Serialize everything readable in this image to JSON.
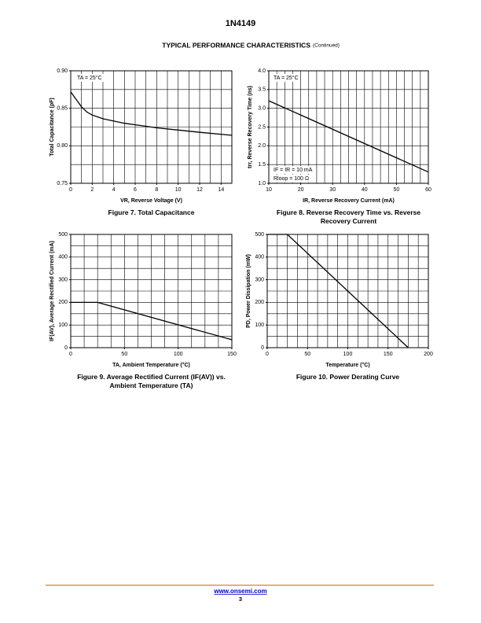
{
  "header": {
    "title": "1N4149",
    "section": "TYPICAL PERFORMANCE CHARACTERISTICS",
    "section_note": "(Continued)"
  },
  "chart_data": [
    {
      "type": "line",
      "title": "Figure 7. Total Capacitance",
      "x_label": "VR, Reverse Voltage (V)",
      "y_label": "Total Capacitance (pF)",
      "annotations": [
        "TA = 25°C"
      ],
      "color": "#000000",
      "x": [
        0,
        0.5,
        1,
        1.5,
        2,
        3,
        4,
        5,
        6,
        7,
        8,
        10,
        12,
        15
      ],
      "values": [
        0.872,
        0.862,
        0.852,
        0.845,
        0.841,
        0.836,
        0.833,
        0.83,
        0.828,
        0.826,
        0.824,
        0.821,
        0.818,
        0.814
      ],
      "xlim": [
        0,
        15
      ],
      "xticks": [
        0,
        2,
        4,
        6,
        8,
        10,
        12,
        14
      ],
      "ylim": [
        0.75,
        0.9
      ],
      "yticks": [
        0.75,
        {
          "value": 0.8,
          "label": "0.80"
        },
        0.85,
        {
          "value": 0.9,
          "label": "0.90"
        }
      ],
      "xgrid": [
        0,
        1,
        2,
        3,
        4,
        5,
        6,
        7,
        8,
        9,
        10,
        11,
        12,
        13,
        14,
        15
      ],
      "ygrid": [
        0.75,
        0.775,
        0.8,
        0.825,
        0.85,
        0.875,
        0.9
      ]
    },
    {
      "type": "line",
      "title": "Figure 8. Reverse Recovery Time vs. Reverse Recovery Current",
      "x_label": "IR, Reverse Recovery Current (mA)",
      "y_label": "trr, Reverse Recovery Time (ns)",
      "annotations": [
        "TA = 25°C",
        "IF = IR = 10 mA",
        "Rloop = 100 Ω"
      ],
      "color": "#000000",
      "x": [
        10,
        60
      ],
      "values": [
        3.2,
        1.3
      ],
      "xlim": [
        10,
        60
      ],
      "xticks": [
        10,
        20,
        30,
        40,
        50,
        60
      ],
      "ylim": [
        1,
        4
      ],
      "yticks": [
        {
          "value": 1,
          "label": "1.0"
        },
        1.5,
        {
          "value": 2,
          "label": "2.0"
        },
        2.5,
        {
          "value": 3,
          "label": "3.0"
        },
        3.5,
        {
          "value": 4,
          "label": "4.0"
        }
      ],
      "xgrid": [
        10,
        12.5,
        15,
        17.5,
        20,
        22.5,
        25,
        27.5,
        30,
        32.5,
        35,
        37.5,
        40,
        42.5,
        45,
        47.5,
        50,
        52.5,
        55,
        57.5,
        60
      ],
      "ygrid": [
        1,
        1.5,
        2,
        2.5,
        3,
        3.5,
        4
      ]
    },
    {
      "type": "line",
      "title": "Figure 9. Average Rectified Current (IF(AV)) vs. Ambient Temperature (TA)",
      "x_label": "TA, Ambient Temperature (°C)",
      "y_label": "IF(AV), Average Rectified Current (mA)",
      "color": "#000000",
      "x": [
        0,
        25,
        150
      ],
      "values": [
        200,
        200,
        35
      ],
      "xlim": [
        0,
        150
      ],
      "xticks": [
        0,
        50,
        100,
        150
      ],
      "ylim": [
        0,
        500
      ],
      "yticks": [
        0,
        100,
        200,
        300,
        400,
        500
      ],
      "xgrid": [
        0,
        12.5,
        25,
        37.5,
        50,
        62.5,
        75,
        87.5,
        100,
        112.5,
        125,
        137.5,
        150
      ],
      "ygrid": [
        0,
        50,
        100,
        150,
        200,
        250,
        300,
        350,
        400,
        450,
        500
      ]
    },
    {
      "type": "line",
      "title": "Figure 10. Power Derating Curve",
      "x_label": "Temperature (°C)",
      "y_label": "PD, Power Dissipation (mW)",
      "color": "#000000",
      "x": [
        0,
        25,
        175
      ],
      "values": [
        500,
        500,
        0
      ],
      "xlim": [
        0,
        200
      ],
      "xticks": [
        0,
        50,
        100,
        150,
        200
      ],
      "ylim": [
        0,
        500
      ],
      "yticks": [
        0,
        100,
        200,
        300,
        400,
        500
      ],
      "xgrid": [
        0,
        12.5,
        25,
        37.5,
        50,
        62.5,
        75,
        87.5,
        100,
        112.5,
        125,
        137.5,
        150,
        162.5,
        175,
        187.5,
        200
      ],
      "ygrid": [
        0,
        50,
        100,
        150,
        200,
        250,
        300,
        350,
        400,
        450,
        500
      ]
    }
  ],
  "footer": {
    "link": "www.onsemi.com",
    "page": "3"
  }
}
